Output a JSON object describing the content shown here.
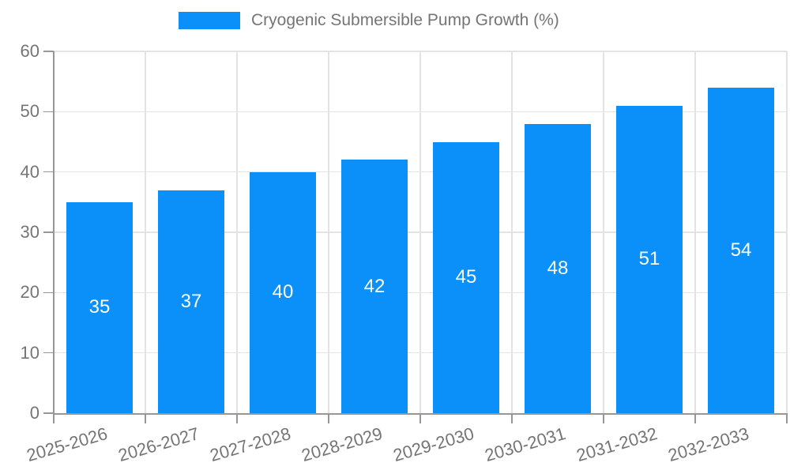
{
  "legend": {
    "label": "Cryogenic Submersible Pump Growth (%)"
  },
  "chart_data": {
    "type": "bar",
    "title": "Cryogenic Submersible Pump Growth (%)",
    "categories": [
      "2025-2026",
      "2026-2027",
      "2027-2028",
      "2028-2029",
      "2029-2030",
      "2030-2031",
      "2031-2032",
      "2032-2033"
    ],
    "values": [
      35,
      37,
      40,
      42,
      45,
      48,
      51,
      54
    ],
    "xlabel": "",
    "ylabel": "",
    "ylim": [
      0,
      60
    ],
    "y_tick_labels": [
      "0",
      "10",
      "20",
      "30",
      "40",
      "50",
      "60"
    ],
    "grid": true,
    "legend_position": "top",
    "colors": {
      "bar": "#0a90f8",
      "value_label": "#ffffff",
      "axis_text": "#757575",
      "grid_line": "#e3e3e3",
      "axis_line": "#979797"
    }
  }
}
